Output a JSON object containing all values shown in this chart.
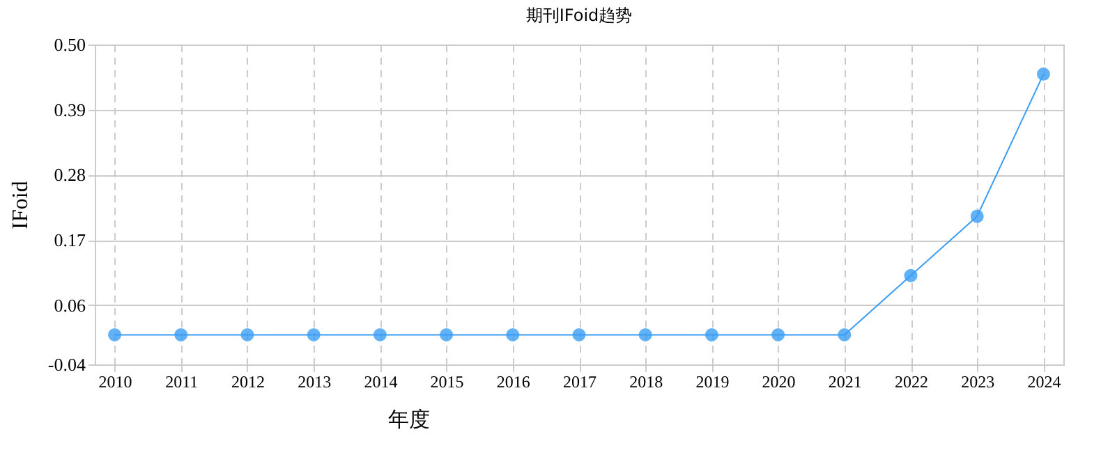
{
  "chart_data": {
    "type": "line",
    "title": "期刊IFoid趋势",
    "xlabel": "年度",
    "ylabel": "IFoid",
    "categories": [
      "2010",
      "2011",
      "2012",
      "2013",
      "2014",
      "2015",
      "2016",
      "2017",
      "2018",
      "2019",
      "2020",
      "2021",
      "2022",
      "2023",
      "2024"
    ],
    "series": [
      {
        "color": "#3a9df5",
        "values": [
          0.01,
          0.01,
          0.01,
          0.01,
          0.01,
          0.01,
          0.01,
          0.01,
          0.01,
          0.01,
          0.01,
          0.01,
          0.11,
          0.21,
          0.45
        ]
      }
    ],
    "ylim": [
      -0.04,
      0.5
    ],
    "yticks": [
      -0.04,
      0.06,
      0.17,
      0.28,
      0.39,
      {
        "value": 0.5,
        "label": "0.50"
      }
    ],
    "grid": true,
    "marker": "circle",
    "line_style": "solid"
  }
}
